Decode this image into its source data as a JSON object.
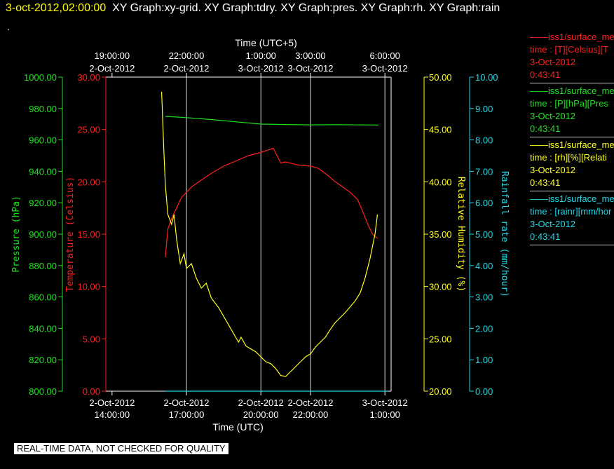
{
  "header": {
    "timestamp": "3-oct-2012,02:00:00",
    "graphs": "XY Graph:xy-grid.  XY Graph:tdry.  XY Graph:pres.  XY Graph:rh.  XY Graph:rain",
    "dot": "."
  },
  "footer": {
    "quality_note": "REAL-TIME DATA, NOT CHECKED FOR QUALITY"
  },
  "legend": [
    {
      "line1": "——iss1/surface_me",
      "line2": "time : [T][Celsius][T",
      "line3": "3-Oct-2012",
      "line4": "0:43:41",
      "color": "#ff2020"
    },
    {
      "line1": "——iss1/surface_me",
      "line2": "time : [P][hPa][Pres",
      "line3": "3-Oct-2012",
      "line4": "0:43:41",
      "color": "#20e020"
    },
    {
      "line1": "——iss1/surface_me",
      "line2": "time : [rh][%][Relati",
      "line3": "3-Oct-2012",
      "line4": "0:43:41",
      "color": "#ffff20"
    },
    {
      "line1": "——iss1/surface_me",
      "line2": "time : [rainr][mm/hor",
      "line3": "3-Oct-2012",
      "line4": "0:43:41",
      "color": "#20d8e8"
    }
  ],
  "chart_data": {
    "type": "line",
    "top_axis_title": "Time (UTC+5)",
    "top_ticks": [
      {
        "t": 0,
        "l1": "19:00:00",
        "l2": "2-Oct-2012"
      },
      {
        "t": 3,
        "l1": "22:00:00",
        "l2": "2-Oct-2012"
      },
      {
        "t": 6,
        "l1": "1:00:00",
        "l2": "3-Oct-2012"
      },
      {
        "t": 8,
        "l1": "3:00:00",
        "l2": "3-Oct-2012"
      },
      {
        "t": 11,
        "l1": "6:00:00",
        "l2": "3-Oct-2012"
      }
    ],
    "xlabel": "Time (UTC)",
    "bottom_ticks": [
      {
        "t": 0,
        "l1": "2-Oct-2012",
        "l2": "14:00:00"
      },
      {
        "t": 3,
        "l1": "2-Oct-2012",
        "l2": "17:00:00"
      },
      {
        "t": 6,
        "l1": "2-Oct-2012",
        "l2": "20:00:00"
      },
      {
        "t": 8,
        "l1": "2-Oct-2012",
        "l2": "22:00:00"
      },
      {
        "t": 11,
        "l1": "3-Oct-2012",
        "l2": "1:00:00"
      }
    ],
    "xlim": [
      -0.25,
      11.25
    ],
    "grid_x": [
      3,
      6,
      8,
      11
    ],
    "axes": {
      "pressure": {
        "label": "Pressure (hPa)",
        "range": [
          800,
          1000
        ],
        "ticks": [
          "800.00",
          "820.00",
          "840.00",
          "860.00",
          "880.00",
          "900.00",
          "920.00",
          "940.00",
          "960.00",
          "980.00",
          "1000.00"
        ],
        "color": "#20e020"
      },
      "temperature": {
        "label": "Temperature (Celsius)",
        "range": [
          0,
          30
        ],
        "ticks": [
          "0.00",
          "5.00",
          "10.00",
          "15.00",
          "20.00",
          "25.00",
          "30.00"
        ],
        "color": "#ff2020"
      },
      "rh": {
        "label": "Relative Humidity (%)",
        "range": [
          20,
          52
        ],
        "ticks": [
          "20.00",
          "25.00",
          "30.00",
          "35.00",
          "40.00",
          "45.00",
          "50.00"
        ],
        "color": "#ffff20"
      },
      "rain": {
        "label": "Rainfall rate (mm/hour)",
        "range": [
          0,
          10
        ],
        "ticks": [
          "0.00",
          "1.00",
          "2.00",
          "3.00",
          "4.00",
          "5.00",
          "6.00",
          "7.00",
          "8.00",
          "9.00",
          "10.00"
        ],
        "color": "#20d8e8"
      }
    },
    "series": [
      {
        "axis": "pressure",
        "x": [
          2.15,
          3.0,
          4.0,
          5.0,
          6.0,
          7.0,
          8.0,
          9.0,
          10.0,
          10.75
        ],
        "values": [
          975.0,
          974.2,
          973.0,
          971.5,
          970.1,
          969.8,
          969.6,
          969.7,
          969.6,
          969.5
        ]
      },
      {
        "axis": "temperature",
        "x": [
          2.15,
          2.25,
          2.4,
          2.6,
          2.8,
          3.0,
          3.2,
          3.5,
          4.0,
          4.5,
          5.0,
          5.5,
          6.0,
          6.5,
          6.8,
          7.0,
          7.5,
          8.0,
          8.3,
          8.6,
          9.0,
          9.3,
          9.6,
          9.9,
          10.1,
          10.3,
          10.5,
          10.7
        ],
        "values": [
          12.8,
          15.5,
          16.5,
          17.5,
          18.5,
          19.0,
          19.5,
          20.0,
          20.8,
          21.5,
          22.0,
          22.5,
          22.8,
          23.2,
          21.8,
          21.9,
          21.6,
          21.5,
          21.3,
          20.8,
          20.0,
          19.5,
          19.0,
          18.3,
          17.2,
          16.0,
          15.0,
          14.6
        ]
      },
      {
        "axis": "rh",
        "x": [
          2.0,
          2.08,
          2.15,
          2.25,
          2.4,
          2.5,
          2.6,
          2.75,
          2.9,
          3.0,
          3.2,
          3.4,
          3.6,
          3.8,
          4.0,
          4.3,
          5.1,
          5.2,
          5.4,
          5.6,
          5.8,
          6.0,
          6.2,
          6.4,
          6.6,
          6.8,
          7.0,
          7.2,
          7.4,
          7.6,
          7.8,
          8.0,
          8.2,
          8.4,
          8.6,
          8.8,
          9.0,
          9.2,
          9.4,
          9.6,
          9.8,
          10.0,
          10.2,
          10.4,
          10.6,
          10.7
        ],
        "values": [
          50.5,
          45.0,
          41.0,
          38.0,
          37.0,
          38.0,
          35.5,
          33.0,
          34.0,
          32.5,
          33.0,
          31.5,
          30.5,
          31.0,
          29.5,
          28.5,
          25.0,
          25.5,
          24.6,
          24.3,
          24.0,
          23.5,
          23.0,
          22.8,
          22.3,
          21.6,
          21.5,
          22.0,
          22.5,
          23.0,
          23.5,
          23.8,
          24.5,
          25.0,
          25.5,
          26.3,
          27.0,
          27.5,
          28.0,
          28.6,
          29.2,
          30.0,
          31.5,
          33.5,
          36.0,
          38.0
        ]
      },
      {
        "axis": "rain",
        "x": [
          2.15,
          11.1
        ],
        "values": [
          0.0,
          0.0
        ]
      }
    ]
  }
}
